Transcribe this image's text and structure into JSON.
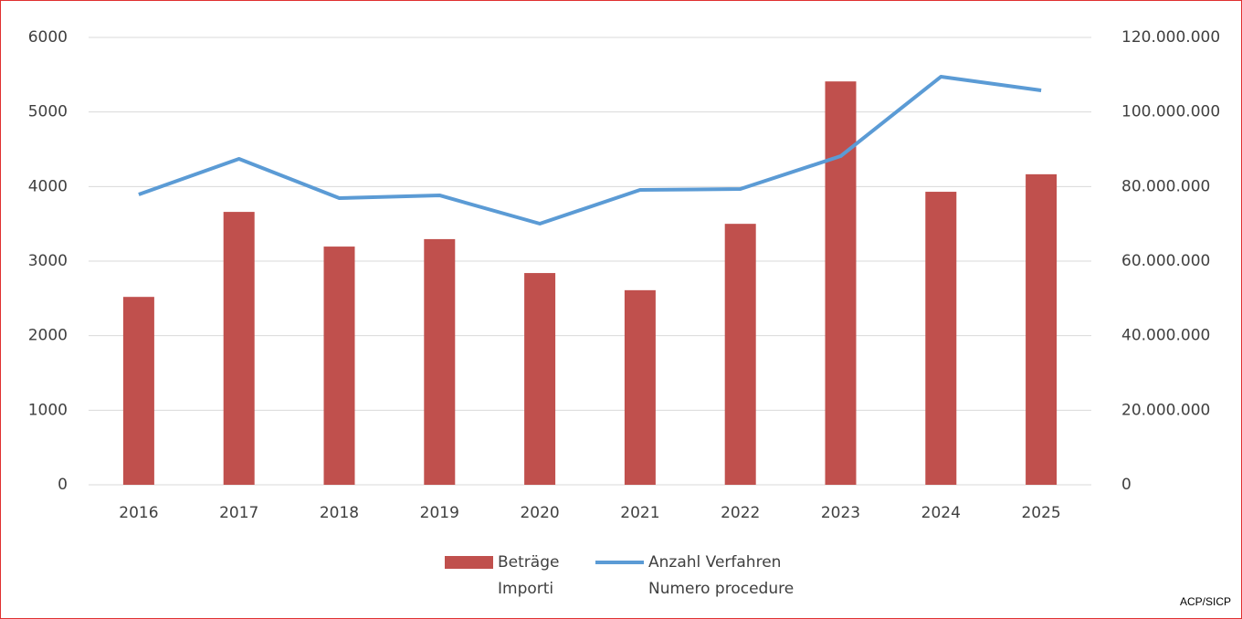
{
  "chart_data": {
    "type": "bar-line",
    "categories": [
      "2016",
      "2017",
      "2018",
      "2019",
      "2020",
      "2021",
      "2022",
      "2023",
      "2024",
      "2025"
    ],
    "series": [
      {
        "name": "Beträge\nImporti",
        "type": "bar",
        "axis": "y2",
        "color": "#c0504d",
        "values": [
          50400000,
          73200000,
          63900000,
          65900000,
          56800000,
          52200000,
          70000000,
          108200000,
          78600000,
          83300000
        ]
      },
      {
        "name": "Anzahl Verfahren\nNumero procedure",
        "type": "line",
        "axis": "y",
        "color": "#5b9bd5",
        "values": [
          3894,
          4371,
          3845,
          3882,
          3502,
          3955,
          3967,
          4408,
          5473,
          5290
        ]
      }
    ],
    "ylim": [
      0,
      6000
    ],
    "yticks": [
      0,
      1000,
      2000,
      3000,
      4000,
      5000,
      6000
    ],
    "y2lim": [
      0,
      120000000
    ],
    "y2ticks": [
      0,
      {
        "value": 20000000,
        "label": "20.000.000"
      },
      {
        "value": 40000000,
        "label": "40.000.000"
      },
      {
        "value": 60000000,
        "label": "60.000.000"
      },
      {
        "value": 80000000,
        "label": "80.000.000"
      },
      {
        "value": 100000000,
        "label": "100.000.000"
      },
      {
        "value": 120000000,
        "label": "120.000.000"
      }
    ],
    "grid": true,
    "legend": "bottom",
    "source": "ACP/SICP"
  }
}
